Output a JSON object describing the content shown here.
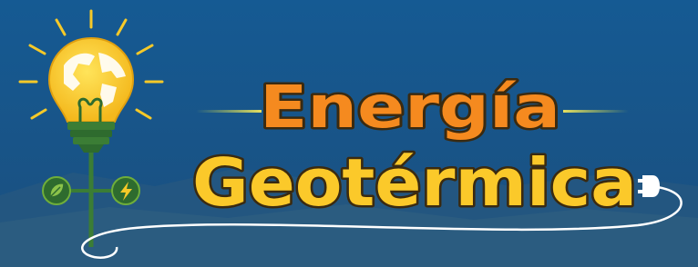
{
  "title": {
    "line1": "Energía",
    "line2": "Geotérmica"
  }
}
